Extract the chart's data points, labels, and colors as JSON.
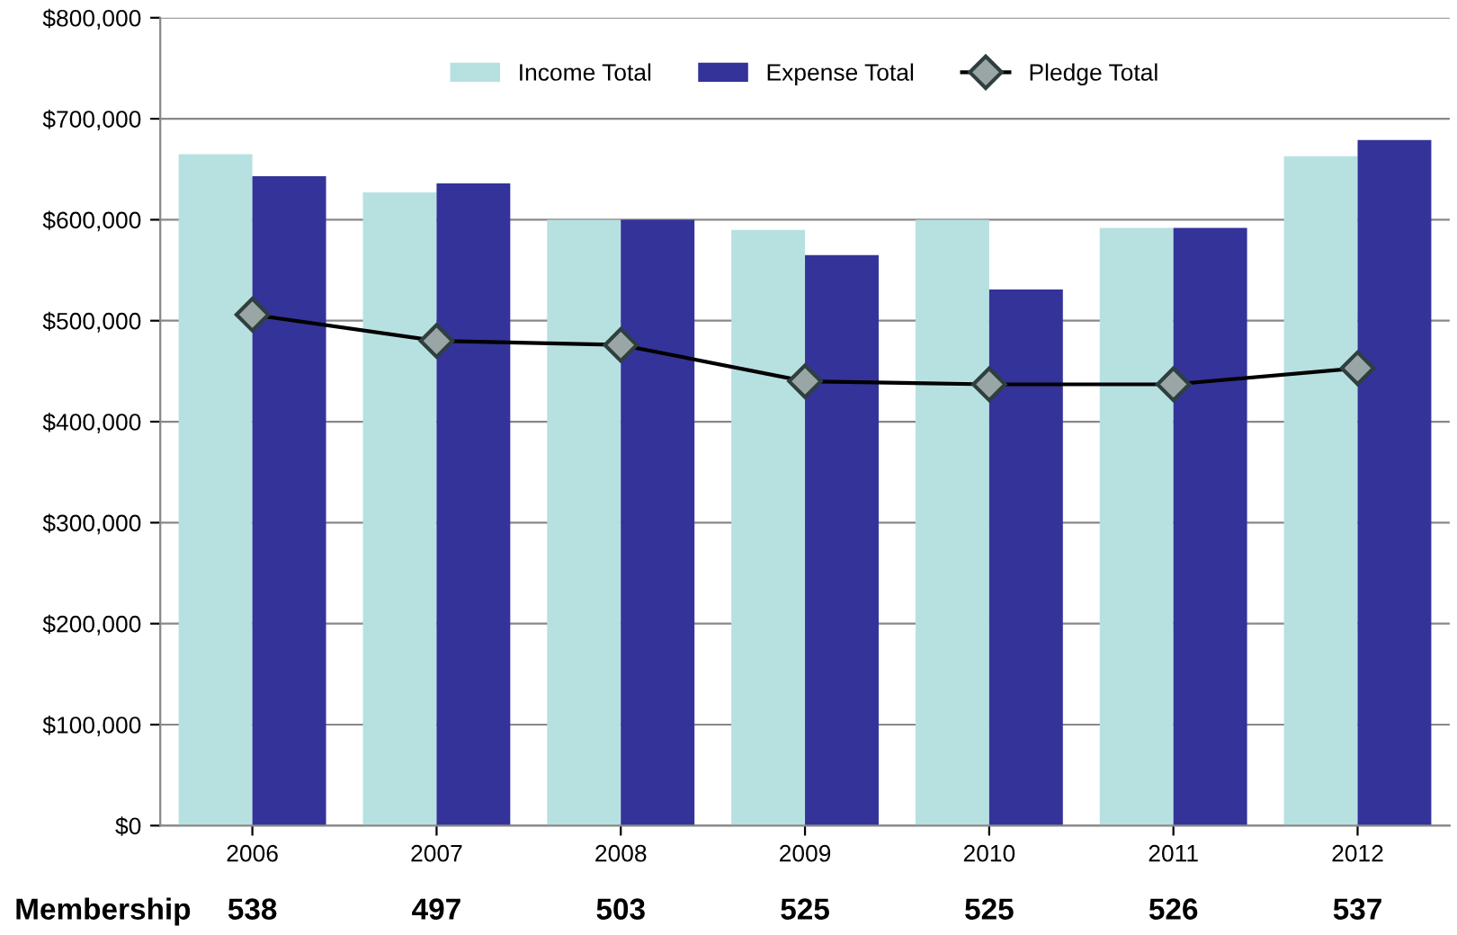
{
  "chart_data": {
    "type": "bar",
    "categories": [
      "2006",
      "2007",
      "2008",
      "2009",
      "2010",
      "2011",
      "2012"
    ],
    "series": [
      {
        "name": "Income Total",
        "color": "#b7e1e1",
        "values": [
          665000,
          627000,
          600000,
          590000,
          600000,
          592000,
          663000
        ]
      },
      {
        "name": "Expense Total",
        "color": "#333399",
        "values": [
          643000,
          636000,
          600000,
          565000,
          531000,
          592000,
          679000
        ]
      },
      {
        "name": "Pledge Total",
        "type": "line",
        "color": "#000000",
        "marker": "diamond",
        "values": [
          506000,
          480000,
          476000,
          440000,
          437000,
          437000,
          453000
        ]
      }
    ],
    "ylim": [
      0,
      800000
    ],
    "yticks": [
      {
        "value": 0,
        "label": "$0"
      },
      {
        "value": 100000,
        "label": "$100,000"
      },
      {
        "value": 200000,
        "label": "$200,000"
      },
      {
        "value": 300000,
        "label": "$300,000"
      },
      {
        "value": 400000,
        "label": "$400,000"
      },
      {
        "value": 500000,
        "label": "$500,000"
      },
      {
        "value": 600000,
        "label": "$600,000"
      },
      {
        "value": 700000,
        "label": "$700,000"
      },
      {
        "value": 800000,
        "label": "$800,000"
      }
    ],
    "grid": "y",
    "legend": "top",
    "annotations": [
      "Membership",
      "538",
      "497",
      "503",
      "525",
      "525",
      "526",
      "537"
    ]
  }
}
